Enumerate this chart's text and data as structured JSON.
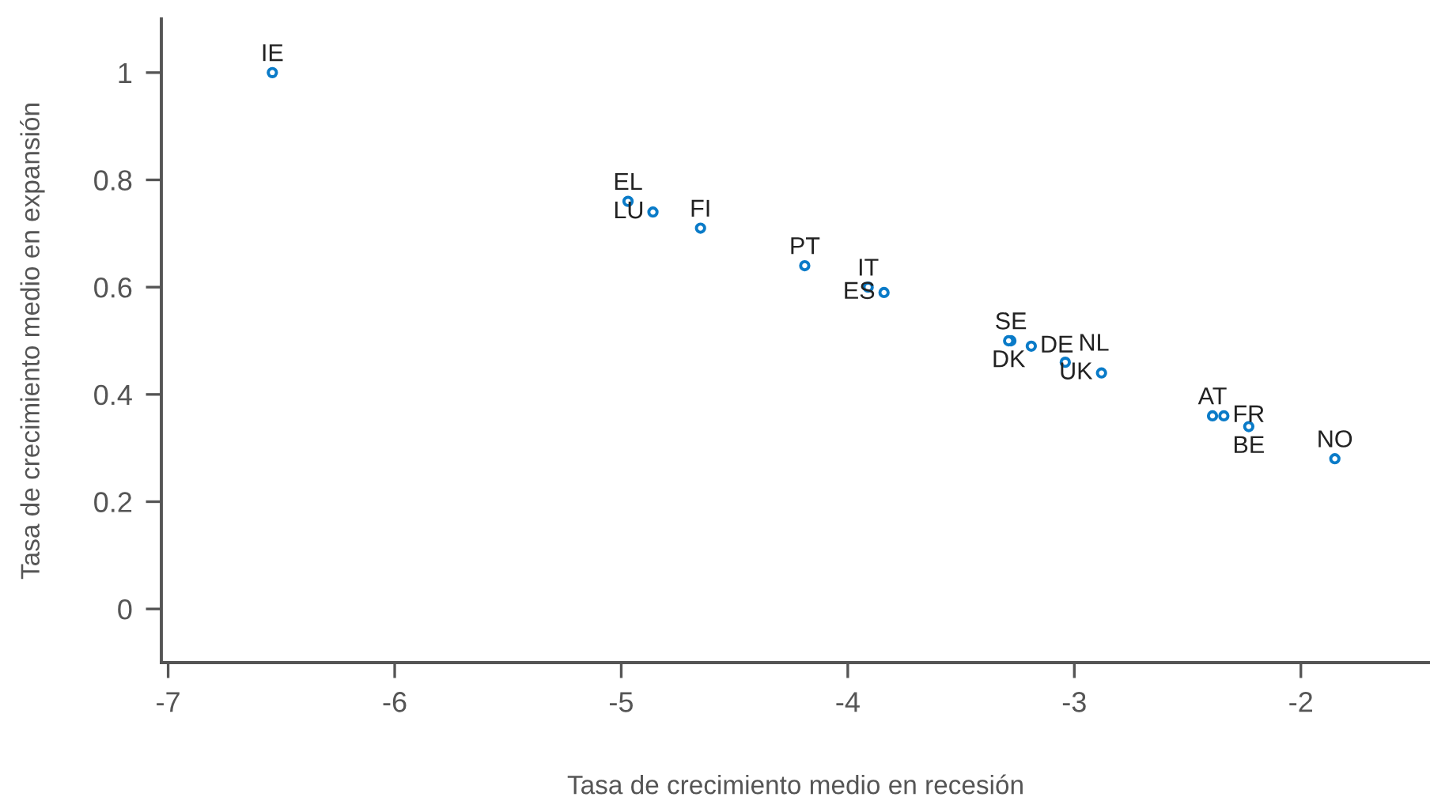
{
  "chart_data": {
    "type": "scatter",
    "xlabel": "Tasa de crecimiento medio en recesión",
    "ylabel": "Tasa de crecimiento medio en expansión",
    "x": [
      -6.54,
      -4.97,
      -4.86,
      -4.65,
      -4.19,
      -3.91,
      -3.84,
      -3.28,
      -3.29,
      -3.19,
      -3.04,
      -2.88,
      -2.39,
      -2.34,
      -2.23,
      -1.85
    ],
    "series": [
      {
        "color": "#0a7bc8",
        "values": [
          1.0,
          0.76,
          0.74,
          0.71,
          0.64,
          0.6,
          0.59,
          0.5,
          0.5,
          0.49,
          0.46,
          0.44,
          0.36,
          0.36,
          0.34,
          0.28
        ]
      }
    ],
    "annotations": [
      {
        "text": "IE",
        "x": -6.54,
        "y": 1.0
      },
      {
        "text": "EL",
        "x": -4.97,
        "y": 0.76
      },
      {
        "text": "LU",
        "x": -4.86,
        "y": 0.74
      },
      {
        "text": "FI",
        "x": -4.65,
        "y": 0.71
      },
      {
        "text": "PT",
        "x": -4.19,
        "y": 0.64
      },
      {
        "text": "IT",
        "x": -3.91,
        "y": 0.6
      },
      {
        "text": "ES",
        "x": -3.84,
        "y": 0.59
      },
      {
        "text": "SE",
        "x": -3.28,
        "y": 0.5
      },
      {
        "text": "DK",
        "x": -3.29,
        "y": 0.5
      },
      {
        "text": "DE",
        "x": -3.19,
        "y": 0.49
      },
      {
        "text": "NL",
        "x": -3.04,
        "y": 0.46
      },
      {
        "text": "UK",
        "x": -2.88,
        "y": 0.44
      },
      {
        "text": "AT",
        "x": -2.39,
        "y": 0.36
      },
      {
        "text": "FR",
        "x": -2.34,
        "y": 0.36
      },
      {
        "text": "BE",
        "x": -2.23,
        "y": 0.34
      },
      {
        "text": "NO",
        "x": -1.85,
        "y": 0.28
      }
    ],
    "xlim": [
      -7.03,
      -1.43
    ],
    "ylim": [
      -0.1,
      1.1
    ],
    "xticks": [
      -7,
      -6,
      -5,
      -4,
      -3,
      -2
    ],
    "yticks": [
      0,
      0.2,
      0.4,
      0.6,
      0.8,
      1
    ],
    "marker": "circle",
    "grid": false,
    "legend": false
  }
}
